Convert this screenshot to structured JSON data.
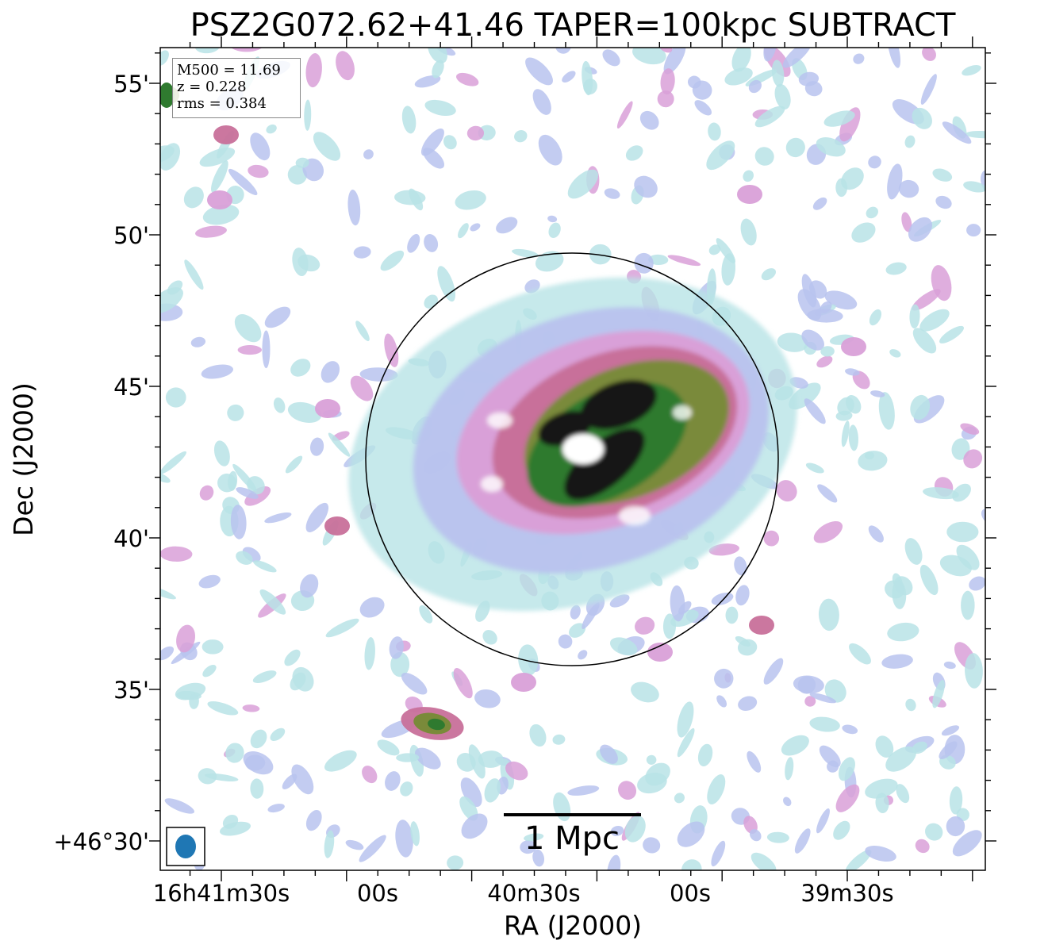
{
  "chart_data": {
    "type": "heatmap",
    "title": "PSZ2G072.62+41.46 TAPER=100kpc SUBTRACT",
    "xlabel": "RA (J2000)",
    "ylabel": "Dec (J2000)",
    "x_ticks": [
      "16h41m30s",
      "00s",
      "40m30s",
      "00s",
      "39m30s"
    ],
    "y_ticks": [
      "55'",
      "50'",
      "45'",
      "40'",
      "35'",
      "+46°30'"
    ],
    "info": {
      "mass": "M500 = 11.69",
      "redshift": "z = 0.228",
      "rms": "rms = 0.384"
    },
    "scalebar_label": "1 Mpc",
    "colormap": [
      "#ffffff",
      "#b8e3e6",
      "#b9c3ee",
      "#d9a0d8",
      "#c8709a",
      "#7a8a3a",
      "#2f7a2f",
      "#141414",
      "#ffffff"
    ],
    "circle_color": "#000000",
    "beam_color": "#1f77b4",
    "grid": false
  }
}
